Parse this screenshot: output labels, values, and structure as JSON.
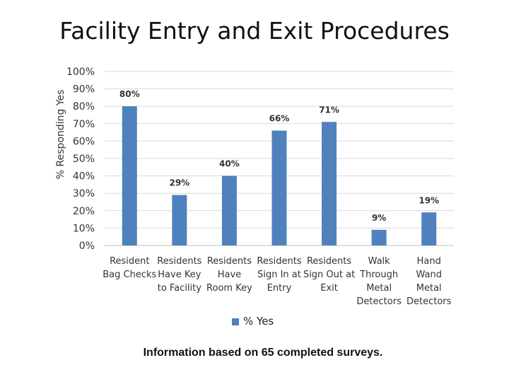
{
  "slide": {
    "title": "Facility Entry and Exit Procedures",
    "footnote": "Information based on 65 completed surveys."
  },
  "colors": {
    "bar": "#4f81bd",
    "grid": "#d9d9d9",
    "axis": "#bfbfbf"
  },
  "chart_data": {
    "type": "bar",
    "title": "Facility Entry and Exit Procedures",
    "ylabel": "% Responding Yes",
    "xlabel": "",
    "ylim": [
      0,
      100
    ],
    "yticks": [
      "0%",
      "10%",
      "20%",
      "30%",
      "40%",
      "50%",
      "60%",
      "70%",
      "80%",
      "90%",
      "100%"
    ],
    "grid": true,
    "legend": "bottom",
    "categories": [
      [
        "Resident",
        "Bag Checks"
      ],
      [
        "Residents",
        "Have Key",
        "to Facility"
      ],
      [
        "Residents",
        "Have",
        "Room Key"
      ],
      [
        "Residents",
        "Sign In at",
        "Entry"
      ],
      [
        "Residents",
        "Sign Out at",
        "Exit"
      ],
      [
        "Walk",
        "Through",
        "Metal",
        "Detectors"
      ],
      [
        "Hand",
        "Wand",
        "Metal",
        "Detectors"
      ]
    ],
    "series": [
      {
        "name": "% Yes",
        "values": [
          80,
          29,
          40,
          66,
          71,
          9,
          19
        ],
        "labels": [
          "80%",
          "29%",
          "40%",
          "66%",
          "71%",
          "9%",
          "19%"
        ]
      }
    ]
  }
}
